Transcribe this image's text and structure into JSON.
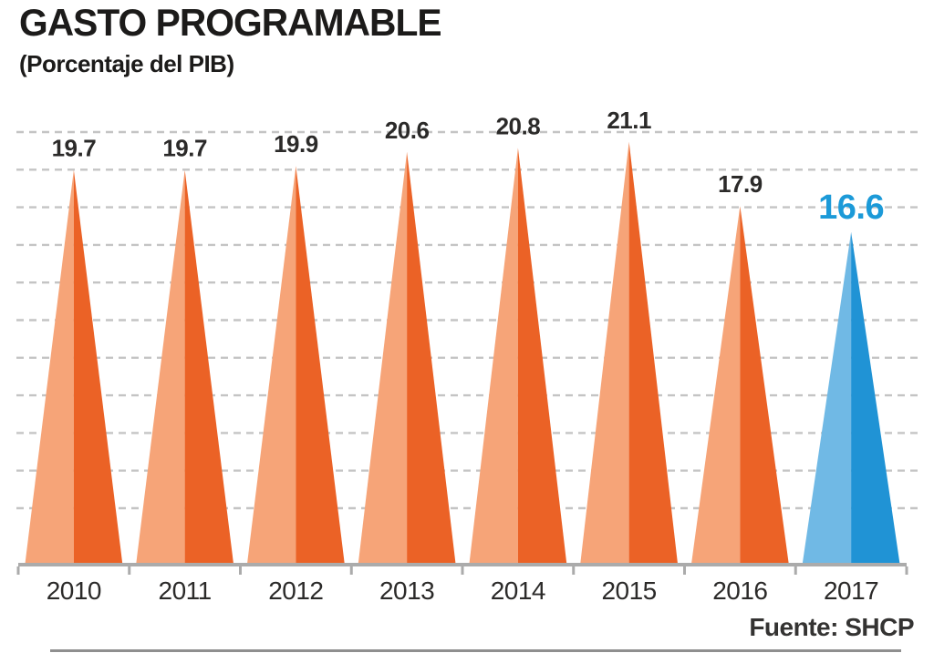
{
  "chart_data": {
    "type": "bar",
    "shape": "triangle-peaks",
    "title": "GASTO PROGRAMABLE",
    "subtitle": "(Porcentaje del PIB)",
    "source": "Fuente: SHCP",
    "categories": [
      "2010",
      "2011",
      "2012",
      "2013",
      "2014",
      "2015",
      "2016",
      "2017"
    ],
    "values": [
      19.7,
      19.7,
      19.9,
      20.6,
      20.8,
      21.1,
      17.9,
      16.6
    ],
    "labels": [
      "19.7",
      "19.7",
      "19.9",
      "20.6",
      "20.8",
      "21.1",
      "17.9",
      "16.6"
    ],
    "xlabel": "",
    "ylabel": "",
    "ylim": [
      0,
      22.6
    ],
    "grid": "horizontal-dashed",
    "legend": "none",
    "highlight_index": 7,
    "colors": {
      "bar_light": "#F6A478",
      "bar_dark": "#EB6226",
      "highlight_light": "#70B9E5",
      "highlight_dark": "#2093D5",
      "label": "#2B2A29",
      "highlight_label": "#1C9AD8",
      "year_label": "#2B2A29",
      "gridline": "#C4C4C4",
      "axis": "#ABABAB"
    }
  }
}
